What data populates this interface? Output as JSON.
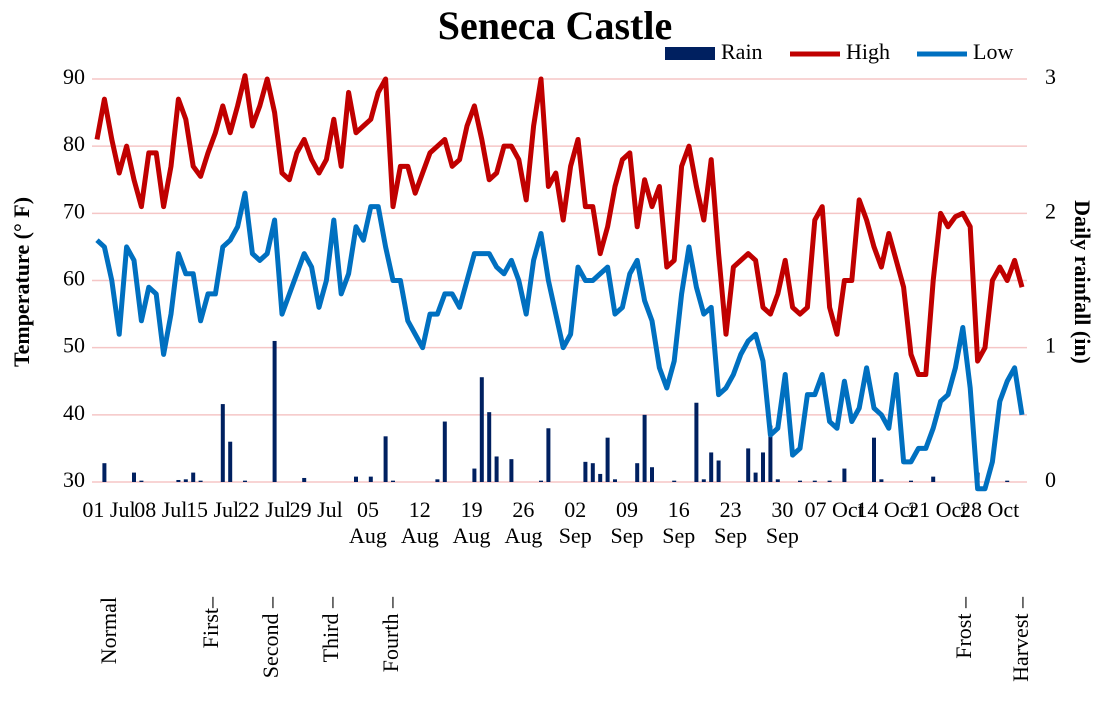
{
  "chart_data": {
    "type": "bar_line",
    "title": "Seneca Castle",
    "ylabel": "Temperature (° F)",
    "y2label": "Daily rainfall (in)",
    "categories": [
      "01 Jul",
      null,
      null,
      null,
      null,
      null,
      null,
      "08 Jul",
      null,
      null,
      null,
      null,
      null,
      null,
      "15 Jul",
      null,
      null,
      null,
      null,
      null,
      null,
      "22 Jul",
      null,
      null,
      null,
      null,
      null,
      null,
      "29 Jul",
      null,
      null,
      null,
      null,
      null,
      null,
      "05 Aug",
      null,
      null,
      null,
      null,
      null,
      null,
      "12 Aug",
      null,
      null,
      null,
      null,
      null,
      null,
      "19 Aug",
      null,
      null,
      null,
      null,
      null,
      null,
      "26 Aug",
      null,
      null,
      null,
      null,
      null,
      null,
      "02 Sep",
      null,
      null,
      null,
      null,
      null,
      null,
      "09 Sep",
      null,
      null,
      null,
      null,
      null,
      null,
      "16 Sep",
      null,
      null,
      null,
      null,
      null,
      null,
      "23 Sep",
      null,
      null,
      null,
      null,
      null,
      null,
      "30 Sep",
      null,
      null,
      null,
      null,
      null,
      null,
      "07 Oct",
      null,
      null,
      null,
      null,
      null,
      null,
      "14 Oct",
      null,
      null,
      null,
      null,
      null,
      null,
      "21 Oct",
      null,
      null,
      null,
      null,
      null,
      null,
      "28 Oct",
      null,
      null,
      null,
      null,
      null,
      null
    ],
    "series": [
      {
        "name": "Rain",
        "type": "bar",
        "axis": "y2",
        "color": "#002060",
        "values": [
          0,
          0.14,
          0,
          0,
          0,
          0.07,
          0.01,
          0,
          0,
          0,
          0,
          0.015,
          0.02,
          0.07,
          0.01,
          0,
          0,
          0.58,
          0.3,
          0,
          0.01,
          0,
          0,
          0,
          1.05,
          0,
          0,
          0,
          0.03,
          0,
          0,
          0,
          0,
          0,
          0,
          0.04,
          0,
          0.04,
          0,
          0.34,
          0.01,
          0,
          0,
          0,
          0,
          0,
          0.02,
          0.45,
          0,
          0,
          0,
          0.1,
          0.78,
          0.52,
          0.19,
          0,
          0.17,
          0,
          0,
          0,
          0.01,
          0.4,
          0,
          0,
          0,
          0,
          0.15,
          0.14,
          0.06,
          0.33,
          0.02,
          0,
          0,
          0.14,
          0.5,
          0.11,
          0,
          0,
          0.01,
          0,
          0,
          0.59,
          0.02,
          0.22,
          0.16,
          0,
          0,
          0,
          0.25,
          0.07,
          0.22,
          0.42,
          0.02,
          0,
          0,
          0.01,
          0,
          0.01,
          0,
          0.01,
          0,
          0.1,
          0,
          0,
          0,
          0.33,
          0.02,
          0,
          0,
          0,
          0.01,
          0,
          0,
          0.04,
          0,
          0,
          0,
          0,
          0,
          0.07,
          0,
          0,
          0,
          0.01,
          0,
          0
        ]
      },
      {
        "name": "High",
        "type": "line",
        "color": "#c00000",
        "values": [
          81,
          87,
          81,
          76,
          80,
          75,
          71,
          79,
          79,
          71,
          77,
          87,
          84,
          77,
          75.5,
          79,
          82,
          86,
          82,
          86,
          90.5,
          83,
          86,
          90,
          85,
          76,
          75,
          79,
          81,
          78,
          76,
          78,
          84,
          77,
          88,
          82,
          83,
          84,
          88,
          90,
          71,
          77,
          77,
          73,
          76,
          79,
          80,
          81,
          77,
          78,
          83,
          86,
          81,
          75,
          76,
          80,
          80,
          78,
          72,
          83,
          90,
          74,
          76,
          69,
          77,
          81,
          71,
          71,
          64,
          68,
          74,
          78,
          79,
          68,
          75,
          71,
          74,
          62,
          63,
          77,
          80,
          74,
          69,
          78,
          64,
          52,
          62,
          63,
          64,
          63,
          56,
          55,
          58,
          63,
          56,
          55,
          56,
          69,
          71,
          56,
          52,
          60,
          60,
          72,
          69,
          65,
          62,
          67,
          63,
          59,
          49,
          46,
          46,
          60,
          70,
          68,
          69.5,
          70,
          68,
          48,
          50,
          60,
          62,
          60,
          63,
          59
        ]
      },
      {
        "name": "Low",
        "type": "line",
        "color": "#0070c0",
        "values": [
          66,
          65,
          60,
          52,
          65,
          63,
          54,
          59,
          58,
          49,
          55,
          64,
          61,
          61,
          54,
          58,
          58,
          65,
          66,
          68,
          73,
          64,
          63,
          64,
          69,
          55,
          58,
          61,
          64,
          62,
          56,
          60,
          69,
          58,
          61,
          68,
          66,
          71,
          71,
          65,
          60,
          60,
          54,
          52,
          50,
          55,
          55,
          58,
          58,
          56,
          60,
          64,
          64,
          64,
          62,
          61,
          63,
          60,
          55,
          63,
          67,
          60,
          55,
          50,
          52,
          62,
          60,
          60,
          61,
          62,
          55,
          56,
          61,
          63,
          57,
          54,
          47,
          44,
          48,
          58,
          65,
          59,
          55,
          56,
          43,
          44,
          46,
          49,
          51,
          52,
          48,
          37,
          38,
          46,
          34,
          35,
          43,
          43,
          46,
          39,
          38,
          45,
          39,
          41,
          47,
          41,
          40,
          38,
          46,
          33,
          33,
          35,
          35,
          38,
          42,
          43,
          47,
          53,
          44,
          29,
          29,
          33,
          42,
          45,
          47,
          40
        ]
      }
    ],
    "ylim": [
      30,
      90
    ],
    "yticks": [
      30,
      40,
      50,
      60,
      70,
      80,
      90
    ],
    "y2lim": [
      0,
      3
    ],
    "y2ticks": [
      0,
      1,
      2,
      3
    ],
    "grid": true,
    "grid_color": "#f5c6c6",
    "legend": "top-right",
    "annotations": [
      "Normal",
      "First–",
      "Second –",
      "Third –",
      "Fourth –",
      "Frost –",
      "Harvest –"
    ]
  }
}
